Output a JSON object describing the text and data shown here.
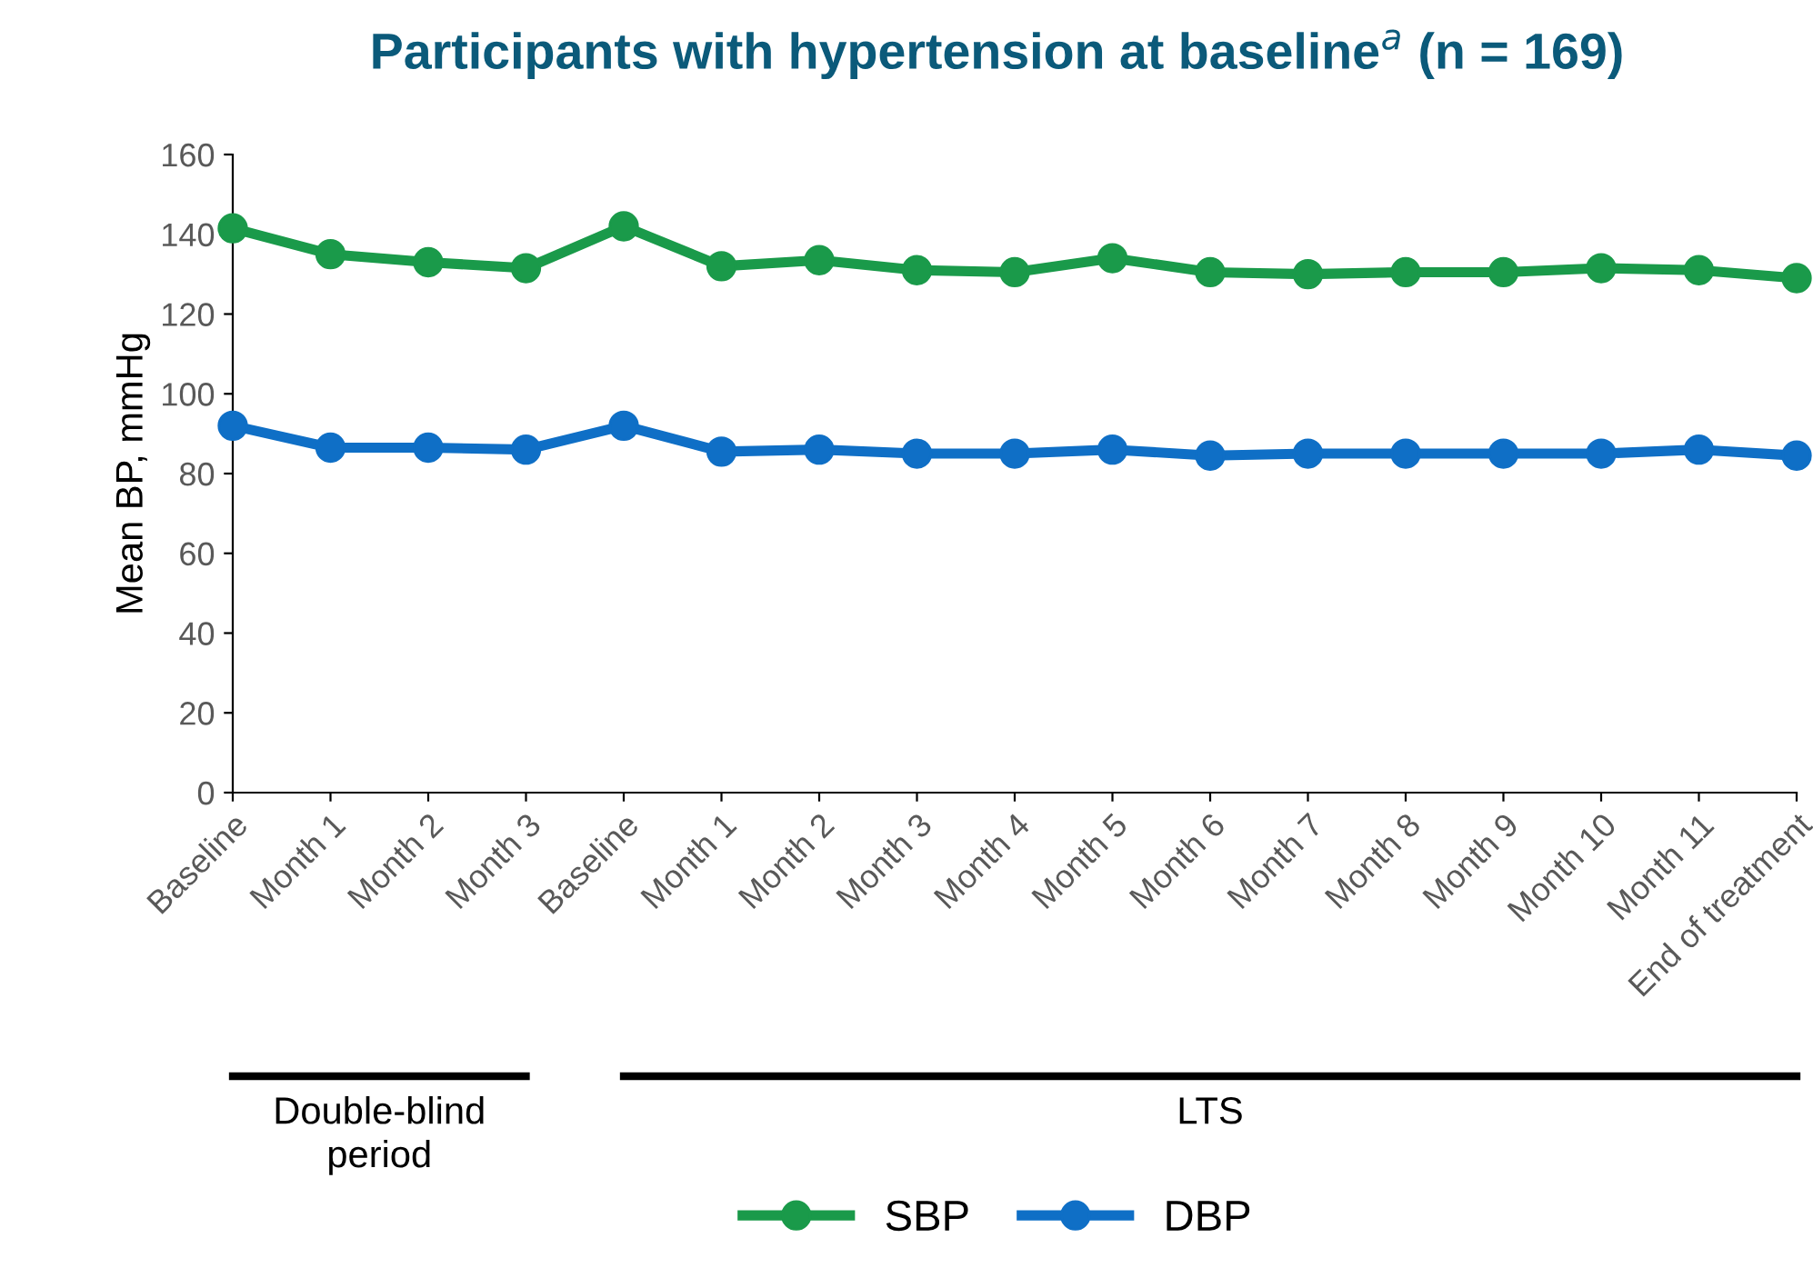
{
  "chart_data": {
    "type": "line",
    "title": "Participants with hypertension at baseline$^{a}$ (n = 169)",
    "ylabel": "Mean BP, mmHg",
    "categories": [
      "Baseline",
      "Month 1",
      "Month 2",
      "Month 3",
      "Baseline",
      "Month 1",
      "Month 2",
      "Month 3",
      "Month 4",
      "Month 5",
      "Month 6",
      "Month 7",
      "Month 8",
      "Month 9",
      "Month 10",
      "Month 11",
      "End of treatment"
    ],
    "series": [
      {
        "name": "SBP",
        "color": "#1a9a4a",
        "values": [
          141.5,
          135,
          133,
          131.5,
          142,
          132,
          133.5,
          131,
          130.5,
          134,
          130.5,
          130,
          130.5,
          130.5,
          131.5,
          131,
          129
        ]
      },
      {
        "name": "DBP",
        "color": "#0f6fc6",
        "values": [
          92,
          86.5,
          86.5,
          86,
          92,
          85.5,
          86,
          85,
          85,
          86,
          84.5,
          85,
          85,
          85,
          85,
          86,
          84.5
        ]
      }
    ],
    "annotations": [
      "Double-blind period",
      "LTS"
    ],
    "ylim": [
      0,
      160
    ],
    "yticks": [
      0,
      20,
      40,
      60,
      80,
      100,
      120,
      140,
      160
    ],
    "marker": "circle",
    "line_style": "solid",
    "grid": false,
    "legend": "bottom"
  }
}
